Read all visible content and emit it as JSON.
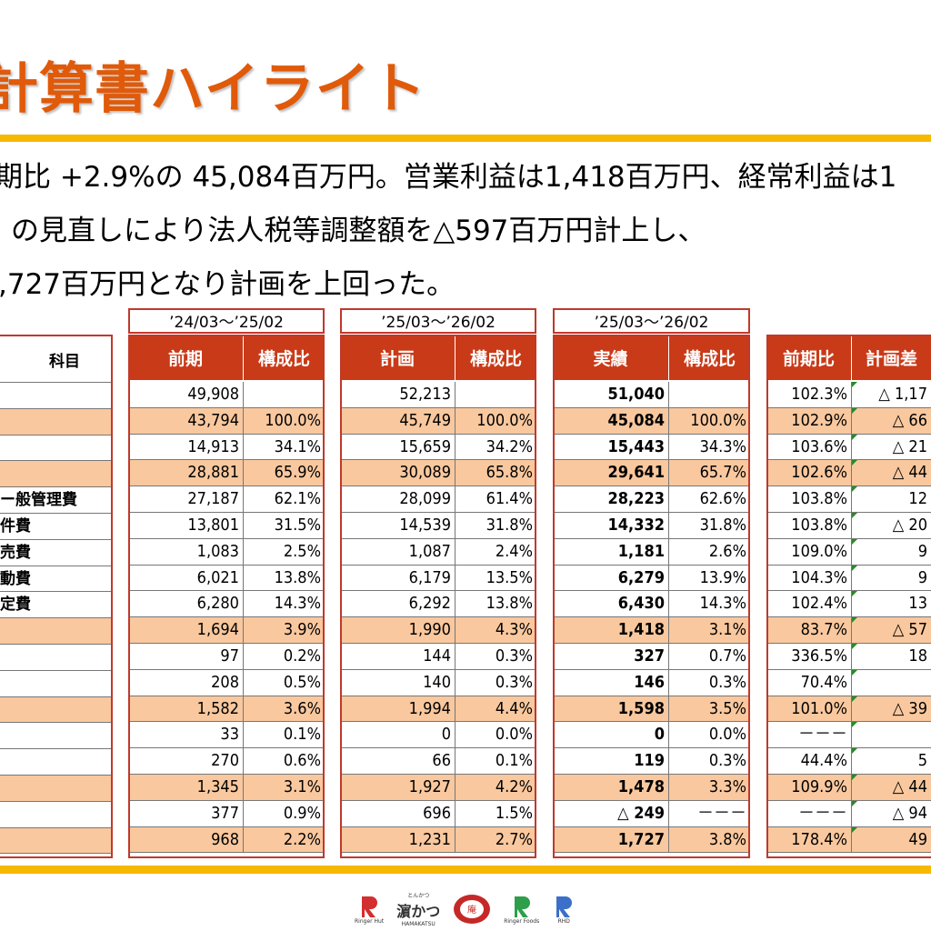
{
  "title": "計算書ハイライト",
  "summary": {
    "line1": "期比 +2.9%の 45,084百万円。営業利益は1,418百万円、経常利益は1",
    "line2": "の見直しにより法人税等調整額を△597百万円計上し、",
    "line3": ",727百万円となり計画を上回った。"
  },
  "labels": {
    "header": "科目",
    "rows": [
      "",
      "",
      "",
      "",
      "ー般管理費",
      "件費",
      "売費",
      "動費",
      "定費",
      "",
      "",
      "",
      "",
      "",
      "",
      "",
      "",
      ""
    ]
  },
  "periods": {
    "prev": "’24/03～’25/02",
    "plan": "’25/03～’26/02",
    "actual": "’25/03～’26/02"
  },
  "headers": {
    "prev": "前期",
    "ratio": "構成比",
    "plan": "計画",
    "actual": "実績",
    "yoy": "前期比",
    "diff": "計画差"
  },
  "highlight_rows": [
    1,
    3,
    9,
    12,
    15,
    17
  ],
  "table": {
    "prev": [
      "49,908",
      "43,794",
      "14,913",
      "28,881",
      "27,187",
      "13,801",
      "1,083",
      "6,021",
      "6,280",
      "1,694",
      "97",
      "208",
      "1,582",
      "33",
      "270",
      "1,345",
      "377",
      "968"
    ],
    "prev_ratio": [
      "",
      "100.0%",
      "34.1%",
      "65.9%",
      "62.1%",
      "31.5%",
      "2.5%",
      "13.8%",
      "14.3%",
      "3.9%",
      "0.2%",
      "0.5%",
      "3.6%",
      "0.1%",
      "0.6%",
      "3.1%",
      "0.9%",
      "2.2%"
    ],
    "plan": [
      "52,213",
      "45,749",
      "15,659",
      "30,089",
      "28,099",
      "14,539",
      "1,087",
      "6,179",
      "6,292",
      "1,990",
      "144",
      "140",
      "1,994",
      "0",
      "66",
      "1,927",
      "696",
      "1,231"
    ],
    "plan_ratio": [
      "",
      "100.0%",
      "34.2%",
      "65.8%",
      "61.4%",
      "31.8%",
      "2.4%",
      "13.5%",
      "13.8%",
      "4.3%",
      "0.3%",
      "0.3%",
      "4.4%",
      "0.0%",
      "0.1%",
      "4.2%",
      "1.5%",
      "2.7%"
    ],
    "actual": [
      "51,040",
      "45,084",
      "15,443",
      "29,641",
      "28,223",
      "14,332",
      "1,181",
      "6,279",
      "6,430",
      "1,418",
      "327",
      "146",
      "1,598",
      "0",
      "119",
      "1,478",
      "△ 249",
      "1,727"
    ],
    "actual_ratio": [
      "",
      "100.0%",
      "34.3%",
      "65.7%",
      "62.6%",
      "31.8%",
      "2.6%",
      "13.9%",
      "14.3%",
      "3.1%",
      "0.7%",
      "0.3%",
      "3.5%",
      "0.0%",
      "0.3%",
      "3.3%",
      "－－－",
      "3.8%"
    ],
    "yoy": [
      "102.3%",
      "102.9%",
      "103.6%",
      "102.6%",
      "103.8%",
      "103.8%",
      "109.0%",
      "104.3%",
      "102.4%",
      "83.7%",
      "336.5%",
      "70.4%",
      "101.0%",
      "－－－",
      "44.4%",
      "109.9%",
      "－－－",
      "178.4%"
    ],
    "diff": [
      "△ 1,17",
      "△ 66",
      "△ 21",
      "△ 44",
      "12",
      "△ 20",
      "9",
      "9",
      "13",
      "△ 57",
      "18",
      "",
      "△ 39",
      "",
      "5",
      "△ 44",
      "△ 94",
      "49"
    ]
  },
  "footer": {
    "logos": [
      "Ringer Hut",
      "HAMAKATSU",
      "",
      "Ringer Foods",
      "RHD"
    ],
    "hamakatsu_text": "濵かつ",
    "hamakatsu_ruby": "とんかつ"
  }
}
